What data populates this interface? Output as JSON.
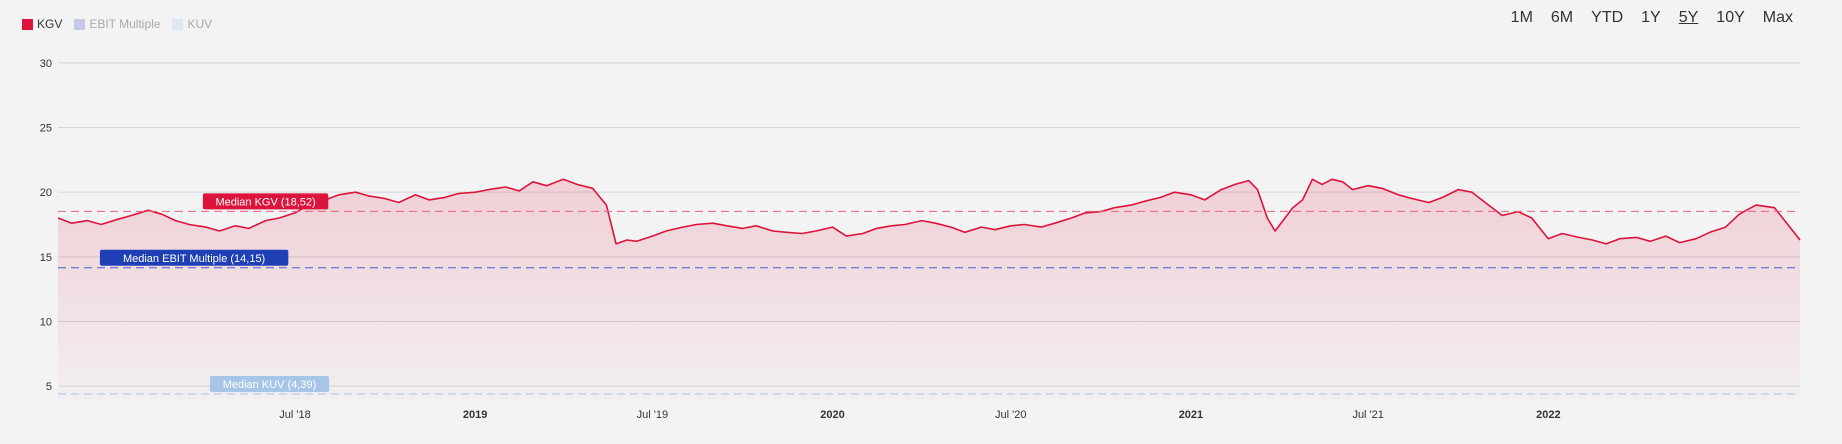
{
  "legend": [
    {
      "label": "KGV",
      "color": "#dc143c",
      "active": true
    },
    {
      "label": "EBIT Multiple",
      "color": "#c5c9e6",
      "active": false
    },
    {
      "label": "KUV",
      "color": "#dfe7f1",
      "active": false
    }
  ],
  "ranges": [
    {
      "label": "1M",
      "active": false
    },
    {
      "label": "6M",
      "active": false
    },
    {
      "label": "YTD",
      "active": false
    },
    {
      "label": "1Y",
      "active": false
    },
    {
      "label": "5Y",
      "active": true
    },
    {
      "label": "10Y",
      "active": false
    },
    {
      "label": "Max",
      "active": false
    }
  ],
  "chart_data": {
    "type": "line",
    "series": [
      {
        "name": "KGV",
        "color": "#dc143c"
      }
    ],
    "x_range": [
      "2017-11-01",
      "2022-09-15"
    ],
    "ylim": [
      4,
      31
    ],
    "yticks": [
      5,
      10,
      15,
      20,
      25,
      30
    ],
    "grid": true,
    "legend_position": "top-left",
    "xticks": [
      {
        "date": "2018-07-01",
        "label": "Jul '18",
        "bold": false
      },
      {
        "date": "2019-01-01",
        "label": "2019",
        "bold": true
      },
      {
        "date": "2019-07-01",
        "label": "Jul '19",
        "bold": false
      },
      {
        "date": "2020-01-01",
        "label": "2020",
        "bold": true
      },
      {
        "date": "2020-07-01",
        "label": "Jul '20",
        "bold": false
      },
      {
        "date": "2021-01-01",
        "label": "2021",
        "bold": true
      },
      {
        "date": "2021-07-01",
        "label": "Jul '21",
        "bold": false
      },
      {
        "date": "2022-01-01",
        "label": "2022",
        "bold": true
      }
    ],
    "points": [
      [
        "2017-11-01",
        18.0
      ],
      [
        "2017-11-15",
        17.6
      ],
      [
        "2017-12-01",
        17.8
      ],
      [
        "2017-12-15",
        17.5
      ],
      [
        "2018-01-01",
        17.9
      ],
      [
        "2018-01-15",
        18.2
      ],
      [
        "2018-02-01",
        18.6
      ],
      [
        "2018-02-15",
        18.3
      ],
      [
        "2018-03-01",
        17.8
      ],
      [
        "2018-03-15",
        17.5
      ],
      [
        "2018-04-01",
        17.3
      ],
      [
        "2018-04-15",
        17.0
      ],
      [
        "2018-05-01",
        17.4
      ],
      [
        "2018-05-15",
        17.2
      ],
      [
        "2018-06-01",
        17.8
      ],
      [
        "2018-06-15",
        18.0
      ],
      [
        "2018-07-01",
        18.4
      ],
      [
        "2018-07-15",
        19.0
      ],
      [
        "2018-08-01",
        19.4
      ],
      [
        "2018-08-15",
        19.8
      ],
      [
        "2018-09-01",
        20.0
      ],
      [
        "2018-09-15",
        19.7
      ],
      [
        "2018-10-01",
        19.5
      ],
      [
        "2018-10-15",
        19.2
      ],
      [
        "2018-11-01",
        19.8
      ],
      [
        "2018-11-15",
        19.4
      ],
      [
        "2018-12-01",
        19.6
      ],
      [
        "2018-12-15",
        19.9
      ],
      [
        "2019-01-01",
        20.0
      ],
      [
        "2019-01-15",
        20.2
      ],
      [
        "2019-02-01",
        20.4
      ],
      [
        "2019-02-15",
        20.1
      ],
      [
        "2019-03-01",
        20.8
      ],
      [
        "2019-03-15",
        20.5
      ],
      [
        "2019-04-01",
        21.0
      ],
      [
        "2019-04-15",
        20.6
      ],
      [
        "2019-05-01",
        20.3
      ],
      [
        "2019-05-15",
        19.0
      ],
      [
        "2019-05-25",
        16.0
      ],
      [
        "2019-06-05",
        16.3
      ],
      [
        "2019-06-15",
        16.2
      ],
      [
        "2019-07-01",
        16.6
      ],
      [
        "2019-07-15",
        17.0
      ],
      [
        "2019-08-01",
        17.3
      ],
      [
        "2019-08-15",
        17.5
      ],
      [
        "2019-09-01",
        17.6
      ],
      [
        "2019-09-15",
        17.4
      ],
      [
        "2019-10-01",
        17.2
      ],
      [
        "2019-10-15",
        17.4
      ],
      [
        "2019-11-01",
        17.0
      ],
      [
        "2019-11-15",
        16.9
      ],
      [
        "2019-12-01",
        16.8
      ],
      [
        "2019-12-15",
        17.0
      ],
      [
        "2020-01-01",
        17.3
      ],
      [
        "2020-01-15",
        16.6
      ],
      [
        "2020-02-01",
        16.8
      ],
      [
        "2020-02-15",
        17.2
      ],
      [
        "2020-03-01",
        17.4
      ],
      [
        "2020-03-15",
        17.5
      ],
      [
        "2020-04-01",
        17.8
      ],
      [
        "2020-04-15",
        17.6
      ],
      [
        "2020-05-01",
        17.3
      ],
      [
        "2020-05-15",
        16.9
      ],
      [
        "2020-06-01",
        17.3
      ],
      [
        "2020-06-15",
        17.1
      ],
      [
        "2020-07-01",
        17.4
      ],
      [
        "2020-07-15",
        17.5
      ],
      [
        "2020-08-01",
        17.3
      ],
      [
        "2020-08-15",
        17.6
      ],
      [
        "2020-09-01",
        18.0
      ],
      [
        "2020-09-15",
        18.4
      ],
      [
        "2020-10-01",
        18.5
      ],
      [
        "2020-10-15",
        18.8
      ],
      [
        "2020-11-01",
        19.0
      ],
      [
        "2020-11-15",
        19.3
      ],
      [
        "2020-12-01",
        19.6
      ],
      [
        "2020-12-15",
        20.0
      ],
      [
        "2021-01-01",
        19.8
      ],
      [
        "2021-01-15",
        19.4
      ],
      [
        "2021-02-01",
        20.2
      ],
      [
        "2021-02-15",
        20.6
      ],
      [
        "2021-03-01",
        20.9
      ],
      [
        "2021-03-10",
        20.2
      ],
      [
        "2021-03-20",
        18.0
      ],
      [
        "2021-03-28",
        17.0
      ],
      [
        "2021-04-05",
        17.8
      ],
      [
        "2021-04-15",
        18.8
      ],
      [
        "2021-04-25",
        19.4
      ],
      [
        "2021-05-05",
        21.0
      ],
      [
        "2021-05-15",
        20.6
      ],
      [
        "2021-05-25",
        21.0
      ],
      [
        "2021-06-05",
        20.8
      ],
      [
        "2021-06-15",
        20.2
      ],
      [
        "2021-07-01",
        20.5
      ],
      [
        "2021-07-15",
        20.3
      ],
      [
        "2021-08-01",
        19.8
      ],
      [
        "2021-08-15",
        19.5
      ],
      [
        "2021-09-01",
        19.2
      ],
      [
        "2021-09-15",
        19.6
      ],
      [
        "2021-10-01",
        20.2
      ],
      [
        "2021-10-15",
        20.0
      ],
      [
        "2021-11-01",
        19.0
      ],
      [
        "2021-11-15",
        18.2
      ],
      [
        "2021-12-01",
        18.5
      ],
      [
        "2021-12-15",
        18.0
      ],
      [
        "2022-01-01",
        16.4
      ],
      [
        "2022-01-15",
        16.8
      ],
      [
        "2022-02-01",
        16.5
      ],
      [
        "2022-02-15",
        16.3
      ],
      [
        "2022-03-01",
        16.0
      ],
      [
        "2022-03-15",
        16.4
      ],
      [
        "2022-04-01",
        16.5
      ],
      [
        "2022-04-15",
        16.2
      ],
      [
        "2022-05-01",
        16.6
      ],
      [
        "2022-05-15",
        16.1
      ],
      [
        "2022-06-01",
        16.4
      ],
      [
        "2022-06-15",
        16.9
      ],
      [
        "2022-07-01",
        17.3
      ],
      [
        "2022-07-15",
        18.3
      ],
      [
        "2022-08-01",
        19.0
      ],
      [
        "2022-08-20",
        18.8
      ],
      [
        "2022-09-15",
        16.3
      ]
    ],
    "medians": [
      {
        "label": "Median KGV (18,52)",
        "value": 18.52,
        "color": "#dc143c",
        "dash_color": "#e8627e",
        "label_date": "2018-06-01"
      },
      {
        "label": "Median EBIT Multiple (14,15)",
        "value": 14.15,
        "color": "#1f3fb4",
        "dash_color": "#4a5bd0",
        "label_date": "2018-03-20"
      },
      {
        "label": "Median KUV (4,39)",
        "value": 4.39,
        "color": "#a6c5e8",
        "dash_color": "#a6c5e8",
        "label_date": "2018-06-05"
      }
    ]
  }
}
